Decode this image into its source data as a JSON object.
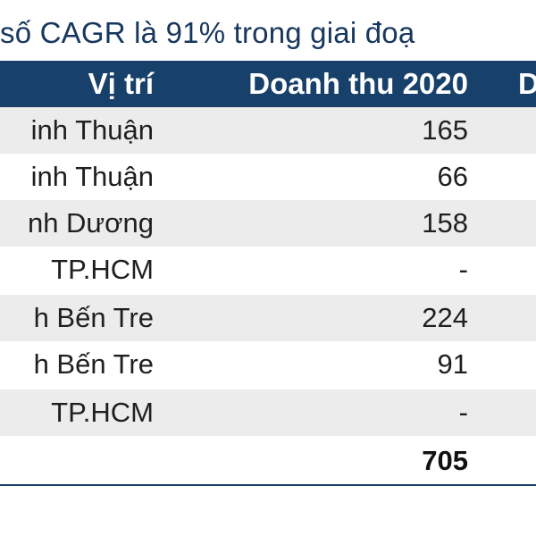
{
  "caption": "số CAGR là 91% trong giai đoạ",
  "table": {
    "headers": {
      "location": "Vị trí",
      "revenue_2020": "Doanh thu 2020",
      "next_partial": "D"
    },
    "rows": [
      {
        "location": "inh Thuận",
        "revenue_2020": "165"
      },
      {
        "location": "inh Thuận",
        "revenue_2020": "66"
      },
      {
        "location": "nh Dương",
        "revenue_2020": "158"
      },
      {
        "location": "TP.HCM",
        "revenue_2020": "-"
      },
      {
        "location": "h Bến Tre",
        "revenue_2020": "224"
      },
      {
        "location": "h Bến Tre",
        "revenue_2020": "91"
      },
      {
        "location": "TP.HCM",
        "revenue_2020": "-"
      }
    ],
    "total": {
      "revenue_2020": "705"
    }
  },
  "colors": {
    "header_bg": "#17406a",
    "caption_text": "#17375e",
    "stripe": "#ececec"
  }
}
